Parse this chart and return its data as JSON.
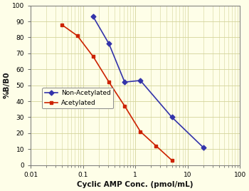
{
  "non_acetylated_x": [
    0.156,
    0.313,
    0.625,
    1.25,
    5.0,
    20.0
  ],
  "non_acetylated_y": [
    93,
    76,
    52,
    53,
    30,
    11
  ],
  "acetylated_x": [
    0.039,
    0.078,
    0.156,
    0.313,
    0.625,
    1.25,
    2.5,
    5.0
  ],
  "acetylated_y": [
    88,
    81,
    68,
    52,
    37,
    21,
    12,
    3
  ],
  "non_acetylated_color": "#3333aa",
  "acetylated_color": "#cc2200",
  "background_color": "#fefee8",
  "grid_color": "#d4d49a",
  "xlabel": "Cyclic AMP Conc. (pmol/mL)",
  "ylabel": "%B/B0",
  "xlim": [
    0.01,
    100
  ],
  "ylim": [
    0,
    100
  ],
  "yticks": [
    0,
    10,
    20,
    30,
    40,
    50,
    60,
    70,
    80,
    90,
    100
  ],
  "xtick_labels": {
    "0.01": "0.01",
    "0.1": "0.1",
    "1": "1",
    "10": "10",
    "100": "100"
  },
  "legend_non_acetylated": "Non-Acetylated",
  "legend_acetylated": "Acetylated",
  "tick_fontsize": 6.5,
  "label_fontsize": 7.5,
  "legend_fontsize": 6.5
}
